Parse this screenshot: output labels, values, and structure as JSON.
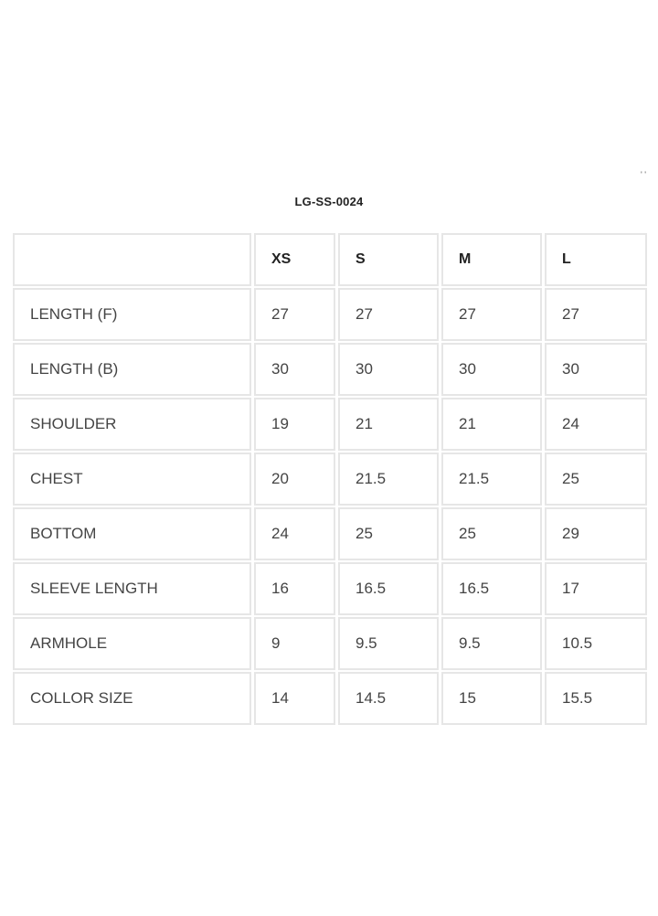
{
  "title": "LG-SS-0024",
  "corner_mark": "' '",
  "table": {
    "headers": [
      "",
      "XS",
      "S",
      "M",
      "L"
    ],
    "rows": [
      {
        "label": "LENGTH (F)",
        "values": [
          "27",
          "27",
          "27",
          "27"
        ]
      },
      {
        "label": "LENGTH (B)",
        "values": [
          "30",
          "30",
          "30",
          "30"
        ]
      },
      {
        "label": "SHOULDER",
        "values": [
          "19",
          "21",
          "21",
          "24"
        ]
      },
      {
        "label": "CHEST",
        "values": [
          "20",
          "21.5",
          "21.5",
          "25"
        ]
      },
      {
        "label": "BOTTOM",
        "values": [
          "24",
          "25",
          "25",
          "29"
        ]
      },
      {
        "label": "SLEEVE LENGTH",
        "values": [
          "16",
          "16.5",
          "16.5",
          "17"
        ]
      },
      {
        "label": "ARMHOLE",
        "values": [
          "9",
          "9.5",
          "9.5",
          "10.5"
        ]
      },
      {
        "label": "COLLOR SIZE",
        "values": [
          "14",
          "14.5",
          "15",
          "15.5"
        ]
      }
    ]
  }
}
